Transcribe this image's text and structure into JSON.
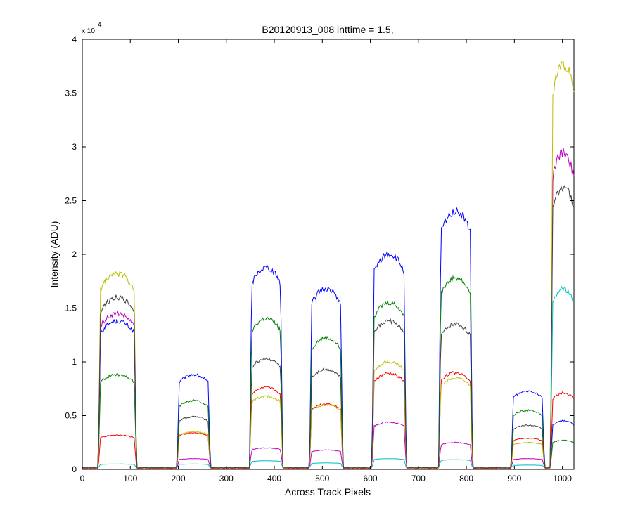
{
  "chart_data": {
    "type": "line",
    "title": "B20120913_008 inttime = 1.5,",
    "xlabel": "Across Track Pixels",
    "ylabel": "Intensity (ADU)",
    "xlim": [
      0,
      1024
    ],
    "ylim": [
      0,
      40000
    ],
    "x_ticks": [
      0,
      100,
      200,
      300,
      400,
      500,
      600,
      700,
      800,
      900,
      1000
    ],
    "y_ticks": [
      0,
      5000,
      10000,
      15000,
      20000,
      25000,
      30000,
      35000,
      40000
    ],
    "y_tick_labels": [
      "0",
      "0.5",
      "1",
      "1.5",
      "2",
      "2.5",
      "3",
      "3.5",
      "4"
    ],
    "y_exponent_label": {
      "base": "x 10",
      "power": "4"
    },
    "grid": false,
    "legend": "none",
    "segments": [
      {
        "x_start": 38,
        "x_end": 108
      },
      {
        "x_start": 202,
        "x_end": 262
      },
      {
        "x_start": 353,
        "x_end": 413
      },
      {
        "x_start": 478,
        "x_end": 538
      },
      {
        "x_start": 608,
        "x_end": 670
      },
      {
        "x_start": 747,
        "x_end": 808
      },
      {
        "x_start": 898,
        "x_end": 958
      },
      {
        "x_start": 980,
        "x_end": 1024
      }
    ],
    "series": [
      {
        "color": "#0000ff",
        "baseline": 200,
        "segment_levels": [
          13800,
          8800,
          18800,
          16800,
          20000,
          24000,
          7300,
          4500
        ]
      },
      {
        "color": "#007f00",
        "baseline": 200,
        "segment_levels": [
          8800,
          6400,
          14000,
          12200,
          15500,
          17800,
          5500,
          2700
        ]
      },
      {
        "color": "#ff0000",
        "baseline": 100,
        "segment_levels": [
          3200,
          3400,
          7600,
          6100,
          8900,
          9000,
          2900,
          7100
        ]
      },
      {
        "color": "#00bfbf",
        "baseline": 150,
        "segment_levels": [
          500,
          500,
          800,
          600,
          1000,
          900,
          400,
          16800
        ]
      },
      {
        "color": "#bf00bf",
        "baseline": 150,
        "segment_levels": [
          14500,
          1000,
          2000,
          1800,
          4400,
          2500,
          1000,
          29500
        ]
      },
      {
        "color": "#bfbf00",
        "baseline": 150,
        "segment_levels": [
          18200,
          3500,
          6800,
          6000,
          10000,
          8500,
          2500,
          37800
        ]
      },
      {
        "color": "#404040",
        "baseline": 150,
        "segment_levels": [
          16000,
          4900,
          10300,
          9300,
          13800,
          13500,
          4100,
          26300
        ]
      }
    ]
  }
}
